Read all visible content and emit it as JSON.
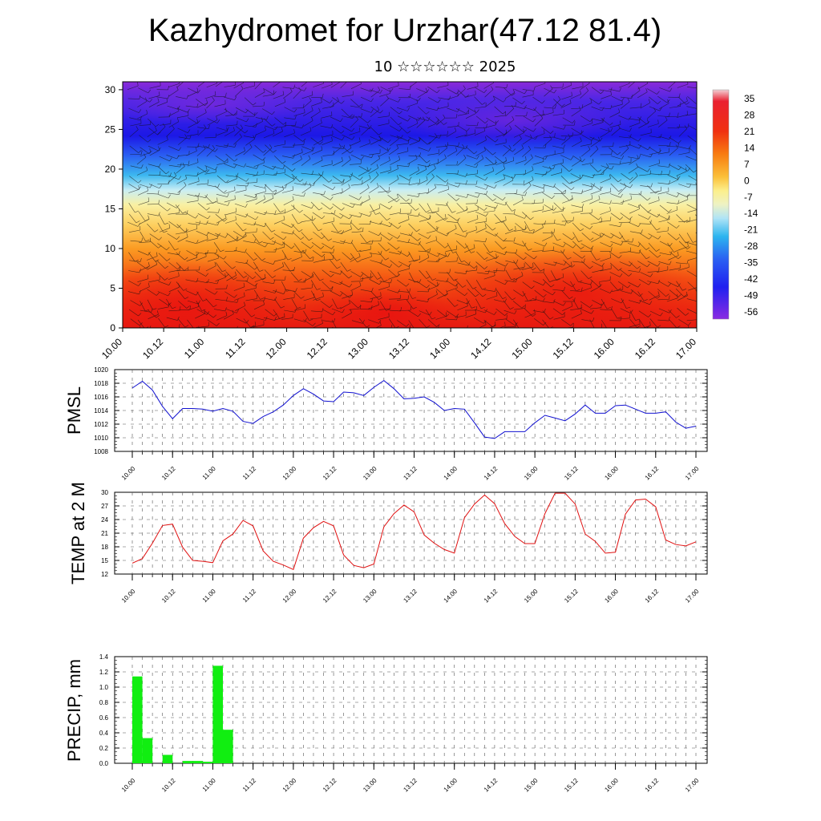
{
  "title": "Kazhydromet for Urzhar(47.12 81.4)",
  "subtitle": "10 ☆☆☆☆☆☆ 2025",
  "colors": {
    "pmsl": "#1010d0",
    "temp": "#e01010",
    "precip": "#11ee11"
  },
  "chart_data": [
    {
      "type": "heatmap",
      "x_tick_labels": [
        "10.00",
        "10.12",
        "11.00",
        "11.12",
        "12.00",
        "12.12",
        "13.00",
        "13.12",
        "14.00",
        "14.12",
        "15.00",
        "15.12",
        "16.00",
        "16.12",
        "17.00"
      ],
      "y_ticks": [
        0,
        5,
        10,
        15,
        20,
        25,
        30
      ],
      "ylim": [
        0,
        31
      ],
      "colorbar_labels": [
        "35",
        "28",
        "21",
        "14",
        "7",
        "0",
        "-7",
        "-14",
        "-21",
        "-28",
        "-35",
        "-42",
        "-49",
        "-56"
      ],
      "overlay": "wind barbs"
    },
    {
      "type": "line",
      "ylabel": "PMSL",
      "ylim": [
        1008,
        1020
      ],
      "y_ticks": [
        1008,
        1010,
        1012,
        1014,
        1016,
        1018,
        1020
      ],
      "x_tick_labels": [
        "10.00",
        "10.12",
        "11.00",
        "11.12",
        "12.00",
        "12.12",
        "13.00",
        "13.12",
        "14.00",
        "14.12",
        "15.00",
        "15.12",
        "16.00",
        "16.12",
        "17.00"
      ],
      "values": [
        1017.3,
        1018.3,
        1017.0,
        1014.6,
        1012.8,
        1014.3,
        1014.3,
        1014.2,
        1013.9,
        1014.3,
        1013.9,
        1012.4,
        1012.1,
        1013.1,
        1013.8,
        1014.8,
        1016.2,
        1017.2,
        1016.4,
        1015.4,
        1015.3,
        1016.7,
        1016.6,
        1016.2,
        1017.4,
        1018.4,
        1017.2,
        1015.7,
        1015.8,
        1016.0,
        1015.2,
        1014.0,
        1014.3,
        1014.2,
        1012.2,
        1010.1,
        1009.9,
        1010.9,
        1010.9,
        1010.9,
        1012.2,
        1013.3,
        1012.9,
        1012.5,
        1013.5,
        1014.8,
        1013.6,
        1013.6,
        1014.7,
        1014.8,
        1014.2,
        1013.6,
        1013.6,
        1013.8,
        1012.3,
        1011.4,
        1011.7
      ]
    },
    {
      "type": "line",
      "ylabel": "TEMP at 2 M",
      "ylim": [
        12,
        30
      ],
      "y_ticks": [
        12,
        15,
        18,
        21,
        24,
        27,
        30
      ],
      "x_tick_labels": [
        "10.00",
        "10.12",
        "11.00",
        "11.12",
        "12.00",
        "12.12",
        "13.00",
        "13.12",
        "14.00",
        "14.12",
        "15.00",
        "15.12",
        "16.00",
        "16.12",
        "17.00"
      ],
      "values": [
        14.4,
        15.4,
        18.8,
        22.7,
        23.0,
        17.9,
        15.0,
        14.8,
        14.5,
        19.3,
        20.8,
        23.8,
        22.6,
        17.1,
        14.8,
        14.0,
        13.0,
        19.9,
        22.2,
        23.6,
        22.6,
        16.2,
        13.9,
        13.4,
        14.2,
        22.4,
        25.3,
        27.2,
        25.7,
        20.6,
        18.8,
        17.4,
        16.6,
        24.4,
        27.4,
        29.4,
        27.5,
        23.1,
        20.3,
        18.7,
        18.7,
        25.3,
        29.8,
        29.8,
        27.4,
        20.8,
        19.2,
        16.6,
        16.8,
        25.2,
        28.3,
        28.5,
        26.8,
        19.5,
        18.5,
        18.2,
        19.1
      ]
    },
    {
      "type": "bar",
      "ylabel": "PRECIP, mm",
      "ylim": [
        0,
        1.4
      ],
      "y_ticks": [
        "0.0",
        "0.2",
        "0.4",
        "0.6",
        "0.8",
        "1.0",
        "1.2",
        "1.4"
      ],
      "x_tick_labels": [
        "10.00",
        "10.12",
        "11.00",
        "11.12",
        "12.00",
        "12.12",
        "13.00",
        "13.12",
        "14.00",
        "14.12",
        "15.00",
        "15.12",
        "16.00",
        "16.12",
        "17.00"
      ],
      "values": [
        1.14,
        0.33,
        0,
        0.11,
        0,
        0.03,
        0.03,
        0.02,
        1.28,
        0.44,
        0,
        0,
        0,
        0,
        0,
        0,
        0,
        0,
        0,
        0,
        0,
        0,
        0,
        0,
        0,
        0,
        0,
        0,
        0,
        0,
        0,
        0,
        0,
        0,
        0,
        0,
        0,
        0,
        0,
        0,
        0,
        0,
        0,
        0,
        0,
        0,
        0,
        0,
        0,
        0,
        0,
        0,
        0,
        0,
        0,
        0,
        0
      ]
    }
  ]
}
